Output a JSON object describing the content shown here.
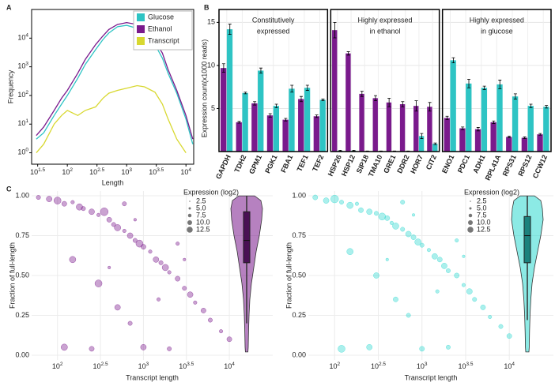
{
  "chart_data": [
    {
      "type": "line",
      "panel_label": "A",
      "xlabel": "Length",
      "ylabel": "Frequency",
      "xscale": "log",
      "yscale": "log",
      "xlim": [
        25,
        13500
      ],
      "ylim": [
        0.4,
        100000
      ],
      "xticks": [
        {
          "value": 31.62,
          "label": "10^1.5"
        },
        {
          "value": 100,
          "label": "10^2"
        },
        {
          "value": 316.2,
          "label": "10^2.5"
        },
        {
          "value": 1000,
          "label": "10^3"
        },
        {
          "value": 3162,
          "label": "10^3.5"
        },
        {
          "value": 10000,
          "label": "10^4"
        }
      ],
      "yticks": [
        {
          "value": 1,
          "label": "10^0"
        },
        {
          "value": 10,
          "label": "10^1"
        },
        {
          "value": 100,
          "label": "10^2"
        },
        {
          "value": 1000,
          "label": "10^3"
        },
        {
          "value": 10000,
          "label": "10^4"
        }
      ],
      "grid": false,
      "legend": "upper right",
      "x": [
        30,
        40,
        60,
        80,
        100,
        150,
        200,
        300,
        400,
        500,
        700,
        1000,
        1500,
        2000,
        3000,
        4000,
        5000,
        7000,
        10000,
        13000
      ],
      "series": [
        {
          "name": "Glucose",
          "color": "#2ec4c4",
          "values": [
            3,
            5,
            20,
            50,
            100,
            400,
            1200,
            4000,
            9000,
            15000,
            25000,
            28000,
            22000,
            15000,
            6000,
            2000,
            600,
            120,
            15,
            2
          ]
        },
        {
          "name": "Ethanol",
          "color": "#7a1a8c",
          "values": [
            4,
            8,
            30,
            80,
            150,
            600,
            1800,
            6000,
            12000,
            20000,
            30000,
            35000,
            30000,
            20000,
            8000,
            3000,
            800,
            150,
            20,
            3
          ]
        },
        {
          "name": "Transcript",
          "color": "#d8d830",
          "values": [
            1,
            2,
            10,
            20,
            30,
            20,
            30,
            40,
            80,
            120,
            150,
            180,
            220,
            200,
            130,
            50,
            15,
            3,
            1,
            null
          ]
        }
      ]
    },
    {
      "type": "grouped_bar",
      "panel_label": "B",
      "ylabel": "Expression count(x1000 reads)",
      "ylim": [
        0,
        16.5
      ],
      "yticks": [
        5,
        10,
        15
      ],
      "grid": true,
      "groups": [
        {
          "title": [
            "Constitutively",
            "expressed"
          ],
          "categories": [
            "GAPDH",
            "TDH2",
            "GPM1",
            "PGK1",
            "FBA1",
            "TEF1",
            "TEF2"
          ],
          "series": [
            {
              "color": "#7a1a8c",
              "values": [
                9.7,
                3.4,
                5.6,
                4.2,
                3.7,
                6.1,
                4.1
              ],
              "errors": [
                0.5,
                0.1,
                0.2,
                0.2,
                0.15,
                0.3,
                0.15
              ]
            },
            {
              "color": "#2ec4c4",
              "values": [
                14.2,
                6.8,
                9.4,
                5.3,
                7.3,
                7.4,
                6.0
              ],
              "errors": [
                0.6,
                0.1,
                0.3,
                0.2,
                0.4,
                0.3,
                0.1
              ]
            }
          ]
        },
        {
          "title": [
            "Highly expressed",
            "in ethanol"
          ],
          "categories": [
            "HSP26",
            "HSP12",
            "SIP18",
            "TMA10",
            "GRE1",
            "DDR2",
            "HOR7",
            "CIT2"
          ],
          "series": [
            {
              "color": "#7a1a8c",
              "values": [
                14.1,
                11.4,
                6.7,
                6.2,
                5.7,
                5.5,
                5.3,
                5.2
              ],
              "errors": [
                0.9,
                0.2,
                0.3,
                0.3,
                0.5,
                0.3,
                0.6,
                0.5
              ]
            },
            {
              "color": "#2ec4c4",
              "values": [
                0.1,
                0.1,
                0.05,
                0.05,
                0.05,
                0.05,
                1.8,
                0.9
              ],
              "errors": [
                0.05,
                0.05,
                0.02,
                0.02,
                0.02,
                0.02,
                0.3,
                0.1
              ]
            }
          ]
        },
        {
          "title": [
            "Highly expressed",
            "in glucose"
          ],
          "categories": [
            "ENO1",
            "PDC1",
            "ADH1",
            "RPL41A",
            "RPS31",
            "RPS12",
            "CCW12"
          ],
          "series": [
            {
              "color": "#7a1a8c",
              "values": [
                3.9,
                2.7,
                2.6,
                3.4,
                1.7,
                1.6,
                2.0
              ],
              "errors": [
                0.2,
                0.15,
                0.2,
                0.15,
                0.1,
                0.1,
                0.1
              ]
            },
            {
              "color": "#2ec4c4",
              "values": [
                10.6,
                7.9,
                7.4,
                7.8,
                6.4,
                5.3,
                5.2
              ],
              "errors": [
                0.3,
                0.5,
                0.2,
                0.5,
                0.3,
                0.2,
                0.15
              ]
            }
          ]
        }
      ]
    },
    {
      "type": "bubble",
      "panel_label": "C",
      "xlabel": "Transcript length",
      "ylabel": "Fraction of full-length",
      "xscale": "log",
      "xlim": [
        50,
        32000
      ],
      "ylim": [
        -0.03,
        1.03
      ],
      "xticks": [
        {
          "value": 100,
          "label": "10^2"
        },
        {
          "value": 316.2,
          "label": "10^2.5"
        },
        {
          "value": 1000,
          "label": "10^3"
        },
        {
          "value": 3162,
          "label": "10^3.5"
        },
        {
          "value": 10000,
          "label": "10^4"
        }
      ],
      "yticks": [
        {
          "value": 0,
          "label": "0.00"
        },
        {
          "value": 0.25,
          "label": "0.25"
        },
        {
          "value": 0.5,
          "label": "0.50"
        },
        {
          "value": 0.75,
          "label": "0.75"
        },
        {
          "value": 1,
          "label": "1.00"
        }
      ],
      "grid": true,
      "color": "#7a1a8c",
      "points": {
        "x": [
          60,
          80,
          100,
          120,
          150,
          180,
          200,
          250,
          300,
          350,
          400,
          450,
          500,
          600,
          700,
          800,
          900,
          1000,
          1200,
          1400,
          1600,
          1800,
          2000,
          2500,
          3000,
          3500,
          4000,
          5000,
          6000,
          8000,
          10000,
          150,
          300,
          500,
          700,
          120,
          250,
          1000,
          2000,
          400,
          1500,
          800,
          2500,
          600,
          3000
        ],
        "y": [
          0.99,
          0.98,
          0.97,
          0.95,
          0.96,
          0.93,
          0.92,
          0.9,
          0.88,
          0.9,
          0.85,
          0.82,
          0.8,
          0.78,
          0.75,
          0.72,
          0.7,
          0.68,
          0.65,
          0.6,
          0.58,
          0.55,
          0.52,
          0.48,
          0.42,
          0.38,
          0.33,
          0.28,
          0.22,
          0.15,
          0.1,
          0.6,
          0.45,
          0.3,
          0.2,
          0.05,
          0.04,
          0.05,
          0.04,
          0.55,
          0.35,
          0.85,
          0.7,
          0.95,
          0.6
        ],
        "size": [
          6,
          8,
          10,
          7,
          5,
          9,
          6,
          8,
          5,
          11,
          7,
          6,
          9,
          5,
          8,
          6,
          10,
          7,
          5,
          8,
          6,
          9,
          5,
          7,
          6,
          8,
          5,
          7,
          6,
          5,
          7,
          9,
          10,
          8,
          6,
          9,
          7,
          8,
          6,
          4,
          5,
          4,
          5,
          6,
          4
        ]
      },
      "size_legend": {
        "title": "Expression (log2)",
        "values": [
          2.5,
          {
            "value": 5,
            "label": "5.0"
          },
          7.5,
          {
            "value": 10,
            "label": "10.0"
          },
          12.5
        ]
      },
      "violin": {
        "y": [
          0.02,
          0.05,
          0.15,
          0.25,
          0.35,
          0.45,
          0.55,
          0.65,
          0.75,
          0.85,
          0.92,
          0.97,
          1.0
        ],
        "density": [
          0.08,
          0.1,
          0.12,
          0.15,
          0.2,
          0.3,
          0.45,
          0.6,
          0.8,
          0.95,
          1.0,
          0.9,
          0.5
        ],
        "box": {
          "whisker_low": 0.2,
          "q1": 0.58,
          "median": 0.72,
          "q3": 0.9,
          "whisker_high": 1.0
        }
      }
    },
    {
      "type": "bubble",
      "xlabel": "Transcript length",
      "ylabel": "Fraction of full-length",
      "xscale": "log",
      "xlim": [
        50,
        32000
      ],
      "ylim": [
        -0.03,
        1.03
      ],
      "xticks": [
        {
          "value": 100,
          "label": "10^2"
        },
        {
          "value": 316.2,
          "label": "10^2.5"
        },
        {
          "value": 1000,
          "label": "10^3"
        },
        {
          "value": 3162,
          "label": "10^3.5"
        },
        {
          "value": 10000,
          "label": "10^4"
        }
      ],
      "yticks": [
        {
          "value": 0,
          "label": "0.00"
        },
        {
          "value": 0.25,
          "label": "0.25"
        },
        {
          "value": 0.5,
          "label": "0.50"
        },
        {
          "value": 0.75,
          "label": "0.75"
        },
        {
          "value": 1,
          "label": "1.00"
        }
      ],
      "grid": true,
      "color": "#2ed8d0",
      "points": {
        "x": [
          60,
          80,
          100,
          120,
          150,
          180,
          200,
          250,
          300,
          350,
          400,
          450,
          500,
          600,
          700,
          800,
          900,
          1000,
          1200,
          1400,
          1600,
          1800,
          2000,
          2500,
          3000,
          3500,
          4000,
          5000,
          6000,
          8000,
          10000,
          150,
          300,
          500,
          700,
          120,
          250,
          1000,
          2000,
          400,
          1500,
          800,
          2500,
          600,
          3000
        ],
        "y": [
          0.99,
          0.97,
          0.98,
          0.96,
          0.94,
          0.95,
          0.91,
          0.9,
          0.89,
          0.87,
          0.86,
          0.83,
          0.81,
          0.79,
          0.76,
          0.74,
          0.71,
          0.69,
          0.66,
          0.62,
          0.6,
          0.56,
          0.53,
          0.5,
          0.44,
          0.4,
          0.35,
          0.3,
          0.24,
          0.18,
          0.12,
          0.65,
          0.5,
          0.35,
          0.25,
          0.04,
          0.05,
          0.04,
          0.05,
          0.6,
          0.4,
          0.88,
          0.72,
          0.96,
          0.62
        ],
        "size": [
          7,
          8,
          11,
          6,
          9,
          5,
          7,
          8,
          6,
          10,
          7,
          5,
          9,
          6,
          8,
          7,
          9,
          6,
          5,
          8,
          7,
          8,
          6,
          7,
          5,
          8,
          6,
          7,
          5,
          6,
          7,
          9,
          8,
          7,
          6,
          10,
          8,
          7,
          6,
          4,
          5,
          4,
          5,
          6,
          4
        ]
      },
      "size_legend": {
        "title": "Expression (log2)",
        "values": [
          2.5,
          {
            "value": 5,
            "label": "5.0"
          },
          7.5,
          {
            "value": 10,
            "label": "10.0"
          },
          12.5
        ]
      },
      "violin": {
        "y": [
          0.02,
          0.05,
          0.15,
          0.25,
          0.35,
          0.45,
          0.55,
          0.65,
          0.75,
          0.85,
          0.92,
          0.97,
          1.0
        ],
        "density": [
          0.1,
          0.12,
          0.14,
          0.17,
          0.22,
          0.3,
          0.45,
          0.65,
          0.85,
          1.0,
          0.95,
          0.85,
          0.45
        ],
        "box": {
          "whisker_low": 0.22,
          "q1": 0.58,
          "median": 0.75,
          "q3": 0.87,
          "whisker_high": 1.0
        }
      }
    }
  ]
}
